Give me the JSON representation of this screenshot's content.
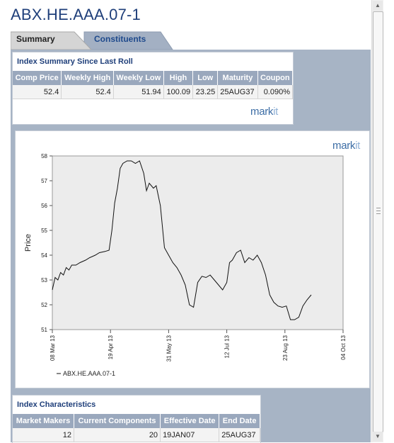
{
  "page_title": "ABX.HE.AAA.07-1",
  "tabs": [
    {
      "label": "Summary",
      "active": true
    },
    {
      "label": "Constituents",
      "active": false
    }
  ],
  "summary": {
    "title": "Index Summary Since Last Roll",
    "columns": [
      "Comp Price",
      "Weekly High",
      "Weekly Low",
      "High",
      "Low",
      "Maturity",
      "Coupon"
    ],
    "row": [
      "52.4",
      "52.4",
      "51.94",
      "100.09",
      "23.25",
      "25AUG37",
      "0.090%"
    ]
  },
  "logo": {
    "text_a": "mark",
    "text_b": "it"
  },
  "chart_data": {
    "type": "line",
    "ylabel": "Price",
    "ylim": [
      51,
      58
    ],
    "yticks": [
      "51",
      "52",
      "53",
      "54",
      "55",
      "56",
      "57",
      "58"
    ],
    "xticks": [
      "08 Mar 13",
      "19 Apr 13",
      "31 May 13",
      "12 Jul 13",
      "23 Aug 13",
      "04 Oct 13"
    ],
    "legend": "ABX.HE.AAA.07-1",
    "legend_position": "bottom-left",
    "grid": false,
    "series": [
      {
        "name": "ABX.HE.AAA.07-1",
        "x": [
          "2013-03-08",
          "2013-03-10",
          "2013-03-12",
          "2013-03-14",
          "2013-03-16",
          "2013-03-18",
          "2013-03-20",
          "2013-03-22",
          "2013-03-25",
          "2013-03-28",
          "2013-04-01",
          "2013-04-04",
          "2013-04-08",
          "2013-04-11",
          "2013-04-15",
          "2013-04-18",
          "2013-04-20",
          "2013-04-22",
          "2013-04-24",
          "2013-04-26",
          "2013-04-28",
          "2013-05-01",
          "2013-05-04",
          "2013-05-07",
          "2013-05-10",
          "2013-05-13",
          "2013-05-15",
          "2013-05-17",
          "2013-05-20",
          "2013-05-22",
          "2013-05-25",
          "2013-05-28",
          "2013-05-31",
          "2013-06-03",
          "2013-06-06",
          "2013-06-09",
          "2013-06-12",
          "2013-06-15",
          "2013-06-18",
          "2013-06-21",
          "2013-06-24",
          "2013-06-27",
          "2013-06-30",
          "2013-07-03",
          "2013-07-06",
          "2013-07-09",
          "2013-07-12",
          "2013-07-14",
          "2013-07-16",
          "2013-07-19",
          "2013-07-22",
          "2013-07-25",
          "2013-07-28",
          "2013-07-31",
          "2013-08-03",
          "2013-08-06",
          "2013-08-09",
          "2013-08-12",
          "2013-08-15",
          "2013-08-18",
          "2013-08-21",
          "2013-08-24",
          "2013-08-27",
          "2013-08-30",
          "2013-09-02",
          "2013-09-05",
          "2013-09-08",
          "2013-09-11"
        ],
        "values": [
          52.6,
          53.1,
          53.0,
          53.3,
          53.2,
          53.5,
          53.4,
          53.6,
          53.6,
          53.7,
          53.8,
          53.9,
          54.0,
          54.1,
          54.15,
          54.2,
          55.0,
          56.1,
          56.7,
          57.5,
          57.7,
          57.8,
          57.8,
          57.7,
          57.8,
          57.3,
          56.6,
          56.9,
          56.7,
          56.8,
          56.0,
          54.3,
          54.0,
          53.7,
          53.5,
          53.2,
          52.8,
          52.0,
          51.9,
          52.9,
          53.15,
          53.1,
          53.2,
          53.0,
          52.8,
          52.6,
          52.9,
          53.7,
          53.8,
          54.1,
          54.2,
          53.7,
          53.9,
          53.8,
          54.0,
          53.7,
          53.2,
          52.4,
          52.1,
          51.95,
          51.9,
          51.95,
          51.4,
          51.4,
          51.5,
          51.95,
          52.2,
          52.4
        ]
      }
    ]
  },
  "characteristics": {
    "title": "Index Characteristics",
    "columns": [
      "Market Makers",
      "Current Components",
      "Effective Date",
      "End Date"
    ],
    "row": [
      "12",
      "20",
      "19JAN07",
      "25AUG37"
    ]
  }
}
